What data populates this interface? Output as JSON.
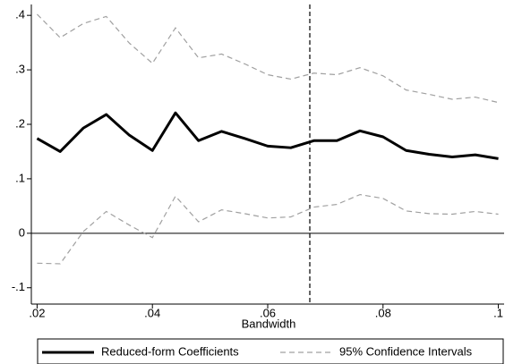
{
  "chart_data": {
    "type": "line",
    "xlabel": "Bandwidth",
    "x": [
      0.02,
      0.024,
      0.028,
      0.032,
      0.036,
      0.04,
      0.044,
      0.048,
      0.052,
      0.056,
      0.06,
      0.064,
      0.068,
      0.072,
      0.076,
      0.08,
      0.084,
      0.088,
      0.092,
      0.096,
      0.1
    ],
    "series": [
      {
        "name": "Reduced-form Coefficients",
        "color": "#000000",
        "values": [
          0.174,
          0.15,
          0.193,
          0.218,
          0.18,
          0.152,
          0.221,
          0.17,
          0.187,
          0.174,
          0.16,
          0.157,
          0.17,
          0.17,
          0.188,
          0.177,
          0.152,
          0.145,
          0.14,
          0.144,
          0.137
        ]
      },
      {
        "name": "95% Confidence Intervals",
        "color": "#a0a0a0",
        "upper": [
          0.402,
          0.359,
          0.385,
          0.398,
          0.349,
          0.312,
          0.377,
          0.322,
          0.329,
          0.311,
          0.291,
          0.283,
          0.294,
          0.291,
          0.304,
          0.289,
          0.263,
          0.255,
          0.246,
          0.25,
          0.24
        ],
        "lower": [
          -0.055,
          -0.056,
          0.003,
          0.04,
          0.015,
          -0.008,
          0.068,
          0.021,
          0.043,
          0.036,
          0.028,
          0.03,
          0.048,
          0.053,
          0.071,
          0.064,
          0.041,
          0.036,
          0.035,
          0.04,
          0.035
        ]
      }
    ],
    "vline": 0.0673,
    "hline": 0,
    "xlim": [
      0.019,
      0.101
    ],
    "ylim": [
      -0.13,
      0.42
    ],
    "xticks": [
      {
        "value": 0.02,
        "label": ".02"
      },
      {
        "value": 0.04,
        "label": ".04"
      },
      {
        "value": 0.06,
        "label": ".06"
      },
      {
        "value": 0.08,
        "label": ".08"
      },
      {
        "value": 0.1,
        "label": ".1"
      }
    ],
    "yticks": [
      {
        "value": -0.1,
        "label": "-.1"
      },
      0,
      {
        "value": 0.1,
        "label": ".1"
      },
      {
        "value": 0.2,
        "label": ".2"
      },
      {
        "value": 0.3,
        "label": ".3"
      },
      {
        "value": 0.4,
        "label": ".4"
      }
    ],
    "legend": "bottom"
  }
}
